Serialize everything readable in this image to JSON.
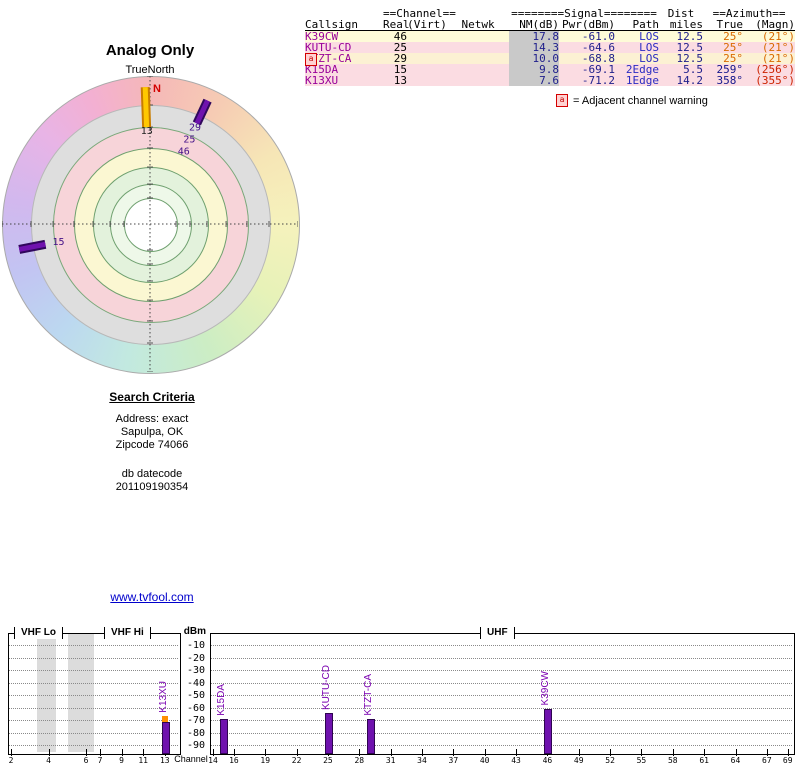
{
  "chart_data": [
    {
      "type": "scatter",
      "subtype": "polar-azimuth-radar",
      "title": "Analog Only",
      "north_label": "TrueNorth",
      "north_marker": "N",
      "points": [
        {
          "label": "13",
          "azimuth_deg": 358,
          "r_inner": 0.655,
          "r_outer": 0.925,
          "label_r": 0.63,
          "bar_color": "#ffc800",
          "edge_color": "#c87d00",
          "label_color": "#222222"
        },
        {
          "label": "29",
          "azimuth_deg": 25,
          "r_inner": 0.75,
          "r_outer": 0.92,
          "label_r": 0.72,
          "bar_color": "#6f12ae",
          "edge_color": "#30075c",
          "label_color": "#441188"
        },
        {
          "label": "25",
          "azimuth_deg": 25,
          "label_r": 0.63,
          "label_color": "#441188"
        },
        {
          "label": "46",
          "azimuth_deg": 25,
          "label_r": 0.54,
          "label_color": "#441188"
        },
        {
          "label": "15",
          "azimuth_deg": 259,
          "r_inner": 0.72,
          "r_outer": 0.9,
          "label_r": 0.63,
          "bar_color": "#6f12ae",
          "edge_color": "#30075c",
          "label_color": "#441188"
        }
      ]
    },
    {
      "type": "bar",
      "xlabel": "Channel",
      "ylabel": "dBm",
      "sections": [
        "VHF Lo",
        "VHF Hi",
        "UHF"
      ],
      "ylim": [
        -90,
        0
      ],
      "y_ticks": [
        -10,
        -20,
        -30,
        -40,
        -50,
        -60,
        -70,
        -80,
        -90
      ],
      "vhf_channels": [
        2,
        4,
        6,
        7,
        9,
        11,
        13
      ],
      "uhf_channels": [
        14,
        16,
        19,
        22,
        25,
        28,
        31,
        34,
        37,
        40,
        43,
        46,
        49,
        52,
        55,
        58,
        61,
        64,
        67,
        69
      ],
      "bars": [
        {
          "callsign": "K13XU",
          "channel": 13,
          "dbm": -71.2,
          "bar_color": "#6f12ae",
          "cap_color": "#ff9000"
        },
        {
          "callsign": "K15DA",
          "channel": 15,
          "dbm": -69.1,
          "bar_color": "#6f12ae"
        },
        {
          "callsign": "KUTU-CD",
          "channel": 25,
          "dbm": -64.6,
          "bar_color": "#6f12ae"
        },
        {
          "callsign": "KTZT-CA",
          "channel": 29,
          "dbm": -68.8,
          "bar_color": "#6f12ae"
        },
        {
          "callsign": "K39CW",
          "channel": 46,
          "dbm": -61.0,
          "bar_color": "#6f12ae"
        }
      ]
    }
  ],
  "table": {
    "group_headers": {
      "channel": "==Channel==",
      "signal": "========Signal========",
      "dist": "Dist",
      "azimuth": "==Azimuth=="
    },
    "col_headers": {
      "callsign": "Callsign",
      "real": "Real",
      "virt": "(Virt)",
      "netwk": "Netwk",
      "nm": "NM(dB)",
      "pwr": "Pwr(dBm)",
      "path": "Path",
      "miles": "miles",
      "true": "True",
      "magn": "(Magn)"
    },
    "rows": [
      {
        "callsign": "K39CW",
        "real": "46",
        "virt": "",
        "netwk": "",
        "nm": "17.8",
        "pwr": "-61.0",
        "path": "LOS",
        "miles": "12.5",
        "true": "25°",
        "magn": "(21°)",
        "warning": false
      },
      {
        "callsign": "KUTU-CD",
        "real": "25",
        "virt": "",
        "netwk": "",
        "nm": "14.3",
        "pwr": "-64.6",
        "path": "LOS",
        "miles": "12.5",
        "true": "25°",
        "magn": "(21°)",
        "warning": false
      },
      {
        "callsign": "KTZT-CA",
        "real": "29",
        "virt": "",
        "netwk": "",
        "nm": "10.0",
        "pwr": "-68.8",
        "path": "LOS",
        "miles": "12.5",
        "true": "25°",
        "magn": "(21°)",
        "warning": true
      },
      {
        "callsign": "K15DA",
        "real": "15",
        "virt": "",
        "netwk": "",
        "nm": "9.8",
        "pwr": "-69.1",
        "path": "2Edge",
        "miles": "5.5",
        "true": "259°",
        "magn": "(256°)",
        "warning": false
      },
      {
        "callsign": "K13XU",
        "real": "13",
        "virt": "",
        "netwk": "",
        "nm": "7.6",
        "pwr": "-71.2",
        "path": "1Edge",
        "miles": "14.2",
        "true": "358°",
        "magn": "(355°)",
        "warning": false
      }
    ],
    "legend": {
      "icon_label": "a",
      "text": "= Adjacent channel warning"
    }
  },
  "search": {
    "title": "Search Criteria",
    "lines": [
      "Address: exact",
      "Sapulpa, OK",
      "Zipcode 74066"
    ],
    "db_label": "db datecode",
    "db_value": "201109190354"
  },
  "footer_link": {
    "text": "www.tvfool.com"
  }
}
